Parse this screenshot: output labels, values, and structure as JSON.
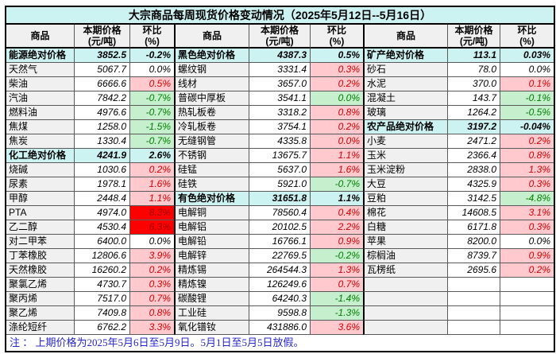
{
  "title": "大宗商品每周现货价格变动情况（2025年5月12日--5月16日）",
  "header": {
    "commodity": "商品",
    "price": "本期价格\n(元/吨)",
    "change": "环比\n(%)"
  },
  "note": "注 ： 上期价格为2025年5月6日至5月9日。5月1日至5月5日放假。",
  "colors": {
    "summary_bg": "#CCF3F2",
    "title_bg": "#CCF3F2",
    "name_cell_bg": "#F0F0F0",
    "up_bg": "#FFC9CE",
    "up_text": "#D60000",
    "down_bg": "#C6EFCE",
    "down_text": "#008000",
    "strong_up_bg": "#FE0000",
    "strong_up_text": "#9C0006",
    "note_text": "#2626CC"
  },
  "groups": [
    {
      "rows": [
        {
          "name": "能源绝对价格",
          "price": "3852.5",
          "change": "-0.2%",
          "style": "summary"
        },
        {
          "name": "天然气",
          "price": "5067.7",
          "change": "0.0%",
          "style": "white"
        },
        {
          "name": "柴油",
          "price": "6666.6",
          "change": "0.5%",
          "style": "pink"
        },
        {
          "name": "汽油",
          "price": "7842.2",
          "change": "-0.7%",
          "style": "green"
        },
        {
          "name": "燃料油",
          "price": "4976.6",
          "change": "-0.7%",
          "style": "green"
        },
        {
          "name": "焦煤",
          "price": "1258.0",
          "change": "-1.5%",
          "style": "green"
        },
        {
          "name": "焦炭",
          "price": "1330.4",
          "change": "-0.7%",
          "style": "green"
        },
        {
          "name": "化工绝对价格",
          "price": "4241.9",
          "change": "2.6%",
          "style": "summary"
        },
        {
          "name": "烧碱",
          "price": "1030.6",
          "change": "0.2%",
          "style": "pink"
        },
        {
          "name": "尿素",
          "price": "1978.1",
          "change": "1.6%",
          "style": "pink"
        },
        {
          "name": "甲醇",
          "price": "2448.4",
          "change": "1.1%",
          "style": "pink"
        },
        {
          "name": "PTA",
          "price": "4974.0",
          "change": "8.3%",
          "style": "red"
        },
        {
          "name": "乙二醇",
          "price": "4530.4",
          "change": "6.3%",
          "style": "red"
        },
        {
          "name": "对二甲苯",
          "price": "6400.0",
          "change": "0.0%",
          "style": "white"
        },
        {
          "name": "丁苯橡胶",
          "price": "12806.6",
          "change": "3.9%",
          "style": "pink"
        },
        {
          "name": "天然橡胶",
          "price": "16260.2",
          "change": "0.2%",
          "style": "pink"
        },
        {
          "name": "聚氯乙烯",
          "price": "4730.7",
          "change": "0.3%",
          "style": "pink"
        },
        {
          "name": "聚丙烯",
          "price": "7517.0",
          "change": "0.7%",
          "style": "pink"
        },
        {
          "name": "聚乙烯",
          "price": "7409.8",
          "change": "0.8%",
          "style": "pink"
        },
        {
          "name": "涤纶短纤",
          "price": "6762.2",
          "change": "3.3%",
          "style": "pink"
        }
      ]
    },
    {
      "rows": [
        {
          "name": "黑色绝对价格",
          "price": "4387.3",
          "change": "0.5%",
          "style": "summary"
        },
        {
          "name": "螺纹钢",
          "price": "3331.4",
          "change": "0.3%",
          "style": "pink"
        },
        {
          "name": "线材",
          "price": "3657.0",
          "change": "0.2%",
          "style": "pink"
        },
        {
          "name": "普碳中厚板",
          "price": "3541.1",
          "change": "0.0%",
          "style": "green"
        },
        {
          "name": "热轧板卷",
          "price": "3318.2",
          "change": "0.8%",
          "style": "pink"
        },
        {
          "name": "冷轧板卷",
          "price": "3754.1",
          "change": "0.2%",
          "style": "pink"
        },
        {
          "name": "无缝钢管",
          "price": "4335.8",
          "change": "0.0%",
          "style": "pink"
        },
        {
          "name": "不锈钢",
          "price": "13675.7",
          "change": "1.1%",
          "style": "pink"
        },
        {
          "name": "硅锰",
          "price": "5637.0",
          "change": "1.6%",
          "style": "pink"
        },
        {
          "name": "硅铁",
          "price": "5921.0",
          "change": "-0.7%",
          "style": "green"
        },
        {
          "name": "有色绝对价格",
          "price": "31651.8",
          "change": "1.1%",
          "style": "summary"
        },
        {
          "name": "电解铜",
          "price": "78560.4",
          "change": "0.4%",
          "style": "pink"
        },
        {
          "name": "电解铝",
          "price": "20102.5",
          "change": "2.2%",
          "style": "pink"
        },
        {
          "name": "电解铅",
          "price": "16766.1",
          "change": "0.9%",
          "style": "pink"
        },
        {
          "name": "电解锌",
          "price": "22769.5",
          "change": "-0.2%",
          "style": "green"
        },
        {
          "name": "精炼锡",
          "price": "264544.3",
          "change": "1.3%",
          "style": "pink"
        },
        {
          "name": "精炼镍",
          "price": "126249.6",
          "change": "0.7%",
          "style": "pink"
        },
        {
          "name": "碳酸锂",
          "price": "64240.3",
          "change": "-1.4%",
          "style": "green"
        },
        {
          "name": "工业硅",
          "price": "9598.8",
          "change": "-1.3%",
          "style": "green"
        },
        {
          "name": "氧化镨钕",
          "price": "431886.0",
          "change": "3.6%",
          "style": "pink"
        }
      ]
    },
    {
      "rows": [
        {
          "name": "矿产绝对价格",
          "price": "113.1",
          "change": "0.03%",
          "style": "summary"
        },
        {
          "name": "砂石",
          "price": "78.0",
          "change": "0.0%",
          "style": "white"
        },
        {
          "name": "水泥",
          "price": "370.0",
          "change": "0.1%",
          "style": "pink"
        },
        {
          "name": "混凝土",
          "price": "143.7",
          "change": "-0.1%",
          "style": "green"
        },
        {
          "name": "玻璃",
          "price": "1264.2",
          "change": "-0.5%",
          "style": "green"
        },
        {
          "name": "农产品绝对价格",
          "price": "3197.2",
          "change": "-0.04%",
          "style": "summary"
        },
        {
          "name": "小麦",
          "price": "2471.2",
          "change": "0.2%",
          "style": "pink"
        },
        {
          "name": "玉米",
          "price": "2366.4",
          "change": "0.8%",
          "style": "pink"
        },
        {
          "name": "玉米淀粉",
          "price": "2838.0",
          "change": "1.3%",
          "style": "pink"
        },
        {
          "name": "大豆",
          "price": "4325.9",
          "change": "0.3%",
          "style": "pink"
        },
        {
          "name": "豆粕",
          "price": "3142.5",
          "change": "-4.8%",
          "style": "green"
        },
        {
          "name": "棉花",
          "price": "14608.5",
          "change": "3.1%",
          "style": "pink"
        },
        {
          "name": "白糖",
          "price": "6171.8",
          "change": "0.3%",
          "style": "pink"
        },
        {
          "name": "苹果",
          "price": "8200.0",
          "change": "0.0%",
          "style": "white"
        },
        {
          "name": "棕榈油",
          "price": "8739.7",
          "change": "0.9%",
          "style": "pink"
        },
        {
          "name": "瓦楞纸",
          "price": "2695.6",
          "change": "0.2%",
          "style": "pink"
        },
        {
          "name": "",
          "price": "",
          "change": "",
          "style": "empty"
        },
        {
          "name": "",
          "price": "",
          "change": "",
          "style": "empty"
        },
        {
          "name": "",
          "price": "",
          "change": "",
          "style": "empty"
        },
        {
          "name": "",
          "price": "",
          "change": "",
          "style": "empty"
        }
      ]
    }
  ]
}
